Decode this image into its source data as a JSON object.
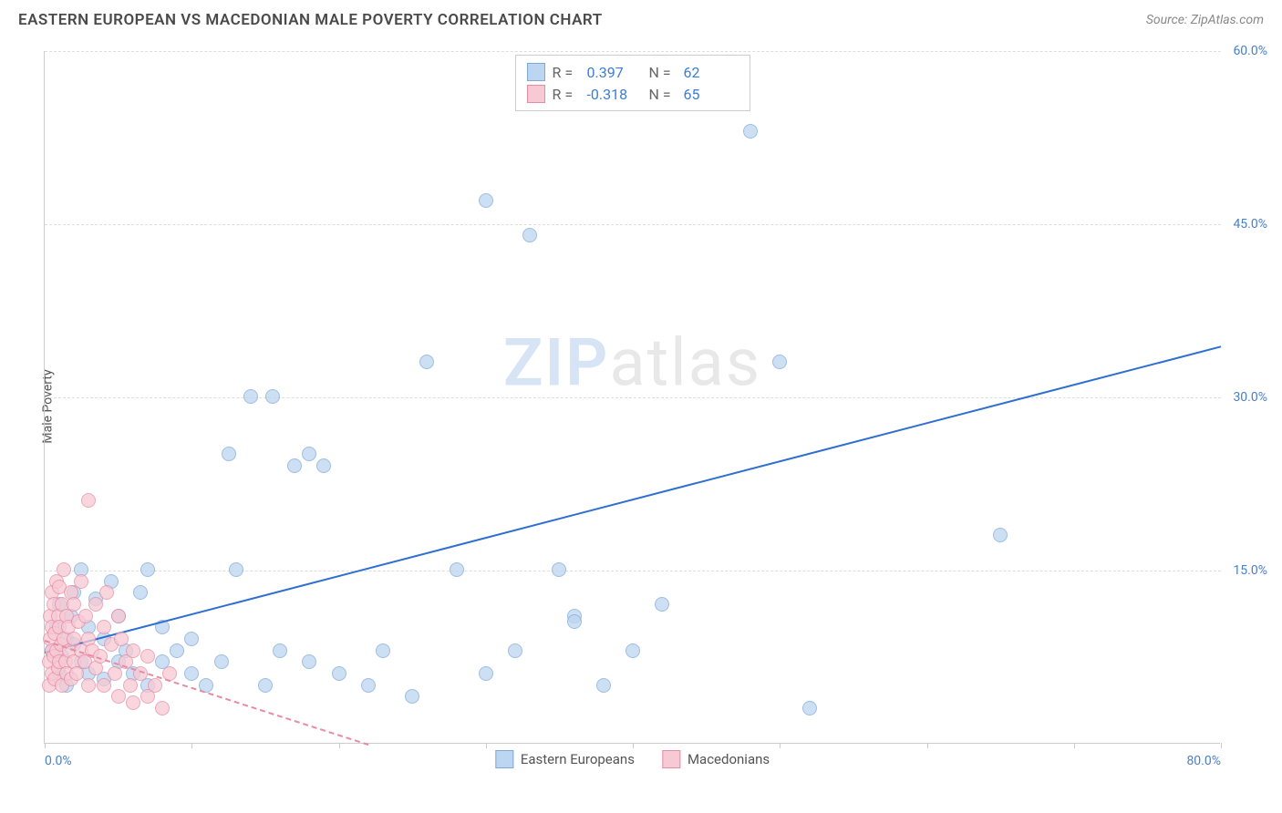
{
  "header": {
    "title": "EASTERN EUROPEAN VS MACEDONIAN MALE POVERTY CORRELATION CHART",
    "source_prefix": "Source: ",
    "source_name": "ZipAtlas.com"
  },
  "watermark": {
    "part1": "ZIP",
    "part2": "atlas"
  },
  "chart": {
    "type": "scatter",
    "y_axis_label": "Male Poverty",
    "xlim": [
      0,
      80
    ],
    "ylim": [
      0,
      60
    ],
    "x_ticks": [
      0,
      10,
      20,
      30,
      40,
      50,
      60,
      70,
      80
    ],
    "x_tick_labels": {
      "0": "0.0%",
      "80": "80.0%"
    },
    "y_ticks": [
      15,
      30,
      45,
      60
    ],
    "y_tick_labels": {
      "15": "15.0%",
      "30": "30.0%",
      "45": "45.0%",
      "60": "60.0%"
    },
    "grid_color": "#dddddd",
    "axis_color": "#cccccc",
    "background_color": "#ffffff",
    "point_radius": 8,
    "point_border_width": 1.5,
    "series": [
      {
        "key": "eastern_europeans",
        "label": "Eastern Europeans",
        "fill": "#bcd5f0",
        "stroke": "#7fa8d9",
        "R": "0.397",
        "N": "62",
        "stat_color": "#3b7dd8",
        "trend": {
          "x1": 0,
          "y1": 8.0,
          "x2": 80,
          "y2": 34.5,
          "color": "#2e6fd1",
          "width": 2,
          "dashed": false
        },
        "points": [
          [
            0.5,
            8
          ],
          [
            0.8,
            10
          ],
          [
            1,
            6
          ],
          [
            1,
            12
          ],
          [
            1.2,
            7.5
          ],
          [
            1.5,
            9
          ],
          [
            1.5,
            5
          ],
          [
            1.8,
            11
          ],
          [
            2,
            8.5
          ],
          [
            2,
            13
          ],
          [
            2.5,
            7
          ],
          [
            2.5,
            15
          ],
          [
            3,
            6
          ],
          [
            3,
            10
          ],
          [
            3.5,
            12.5
          ],
          [
            4,
            5.5
          ],
          [
            4,
            9
          ],
          [
            4.5,
            14
          ],
          [
            5,
            7
          ],
          [
            5,
            11
          ],
          [
            5.5,
            8
          ],
          [
            6,
            6
          ],
          [
            6.5,
            13
          ],
          [
            7,
            15
          ],
          [
            7,
            5
          ],
          [
            8,
            7
          ],
          [
            8,
            10
          ],
          [
            9,
            8
          ],
          [
            10,
            6
          ],
          [
            10,
            9
          ],
          [
            11,
            5
          ],
          [
            12,
            7
          ],
          [
            12.5,
            25
          ],
          [
            13,
            15
          ],
          [
            14,
            30
          ],
          [
            15,
            5
          ],
          [
            15.5,
            30
          ],
          [
            16,
            8
          ],
          [
            17,
            24
          ],
          [
            18,
            7
          ],
          [
            18,
            25
          ],
          [
            19,
            24
          ],
          [
            20,
            6
          ],
          [
            22,
            5
          ],
          [
            23,
            8
          ],
          [
            25,
            4
          ],
          [
            26,
            33
          ],
          [
            28,
            15
          ],
          [
            30,
            6
          ],
          [
            30,
            47
          ],
          [
            32,
            8
          ],
          [
            33,
            44
          ],
          [
            35,
            15
          ],
          [
            36,
            11
          ],
          [
            36,
            10.5
          ],
          [
            38,
            5
          ],
          [
            40,
            8
          ],
          [
            42,
            12
          ],
          [
            48,
            53
          ],
          [
            50,
            33
          ],
          [
            52,
            3
          ],
          [
            65,
            18
          ]
        ]
      },
      {
        "key": "macedonians",
        "label": "Macedonians",
        "fill": "#f7c9d4",
        "stroke": "#e88ba3",
        "R": "-0.318",
        "N": "65",
        "stat_color": "#3b7dd8",
        "trend": {
          "x1": 0,
          "y1": 9.0,
          "x2": 22,
          "y2": 0,
          "color": "#e88ba3",
          "width": 2,
          "dashed": true
        },
        "points": [
          [
            0.3,
            5
          ],
          [
            0.3,
            7
          ],
          [
            0.4,
            9
          ],
          [
            0.4,
            11
          ],
          [
            0.5,
            6
          ],
          [
            0.5,
            8
          ],
          [
            0.5,
            10
          ],
          [
            0.5,
            13
          ],
          [
            0.6,
            7.5
          ],
          [
            0.6,
            12
          ],
          [
            0.7,
            5.5
          ],
          [
            0.7,
            9.5
          ],
          [
            0.8,
            14
          ],
          [
            0.8,
            8
          ],
          [
            0.9,
            6.5
          ],
          [
            0.9,
            11
          ],
          [
            1,
            7
          ],
          [
            1,
            10
          ],
          [
            1,
            13.5
          ],
          [
            1.1,
            8.5
          ],
          [
            1.2,
            5
          ],
          [
            1.2,
            12
          ],
          [
            1.3,
            9
          ],
          [
            1.3,
            15
          ],
          [
            1.4,
            7
          ],
          [
            1.5,
            11
          ],
          [
            1.5,
            6
          ],
          [
            1.6,
            10
          ],
          [
            1.7,
            8
          ],
          [
            1.8,
            13
          ],
          [
            1.8,
            5.5
          ],
          [
            2,
            9
          ],
          [
            2,
            7
          ],
          [
            2,
            12
          ],
          [
            2.2,
            6
          ],
          [
            2.3,
            10.5
          ],
          [
            2.5,
            8
          ],
          [
            2.5,
            14
          ],
          [
            2.7,
            7
          ],
          [
            2.8,
            11
          ],
          [
            3,
            5
          ],
          [
            3,
            9
          ],
          [
            3,
            21
          ],
          [
            3.2,
            8
          ],
          [
            3.5,
            6.5
          ],
          [
            3.5,
            12
          ],
          [
            3.8,
            7.5
          ],
          [
            4,
            10
          ],
          [
            4,
            5
          ],
          [
            4.2,
            13
          ],
          [
            4.5,
            8.5
          ],
          [
            4.8,
            6
          ],
          [
            5,
            11
          ],
          [
            5,
            4
          ],
          [
            5.2,
            9
          ],
          [
            5.5,
            7
          ],
          [
            5.8,
            5
          ],
          [
            6,
            8
          ],
          [
            6,
            3.5
          ],
          [
            6.5,
            6
          ],
          [
            7,
            4
          ],
          [
            7,
            7.5
          ],
          [
            7.5,
            5
          ],
          [
            8,
            3
          ],
          [
            8.5,
            6
          ]
        ]
      }
    ],
    "stats_box": {
      "rows": [
        {
          "series": 0,
          "R_label": "R =",
          "N_label": "N ="
        },
        {
          "series": 1,
          "R_label": "R =",
          "N_label": "N ="
        }
      ]
    }
  }
}
